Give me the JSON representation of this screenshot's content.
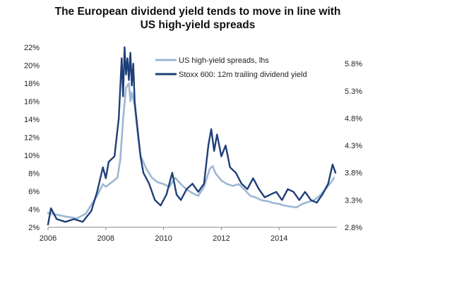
{
  "chart_data": {
    "type": "line",
    "title_line1": "The European dividend yield tends to move in line with",
    "title_line2": "US high-yield spreads",
    "x_ticks": [
      "2006",
      "2008",
      "2010",
      "2012",
      "2014"
    ],
    "x_tick_values": [
      2006,
      2008,
      2010,
      2012,
      2014
    ],
    "xlim": [
      2006,
      2016.0
    ],
    "y_left_ticks": [
      "2%",
      "4%",
      "6%",
      "8%",
      "10%",
      "12%",
      "14%",
      "16%",
      "18%",
      "20%",
      "22%"
    ],
    "y_left_values": [
      2,
      4,
      6,
      8,
      10,
      12,
      14,
      16,
      18,
      20,
      22
    ],
    "ylim_left": [
      2,
      22
    ],
    "y_right_ticks": [
      "2.8%",
      "3.3%",
      "3.8%",
      "4.3%",
      "4.8%",
      "5.3%",
      "5.8%"
    ],
    "y_right_values": [
      2.8,
      3.3,
      3.8,
      4.3,
      4.8,
      5.3,
      5.8
    ],
    "ylim_right": [
      2.8,
      6.1
    ],
    "legend_position": "top-right",
    "series": [
      {
        "name": "US high-yield spreads, lhs",
        "axis": "left",
        "color": "#9bb7d4",
        "x": [
          2006.0,
          2006.3,
          2006.6,
          2007.0,
          2007.3,
          2007.5,
          2007.7,
          2007.9,
          2008.0,
          2008.2,
          2008.4,
          2008.5,
          2008.6,
          2008.7,
          2008.8,
          2008.85,
          2008.9,
          2009.0,
          2009.1,
          2009.2,
          2009.4,
          2009.6,
          2009.8,
          2010.0,
          2010.2,
          2010.4,
          2010.6,
          2010.8,
          2011.0,
          2011.2,
          2011.4,
          2011.6,
          2011.7,
          2011.8,
          2012.0,
          2012.2,
          2012.4,
          2012.6,
          2012.8,
          2013.0,
          2013.2,
          2013.4,
          2013.6,
          2013.8,
          2014.0,
          2014.2,
          2014.4,
          2014.6,
          2014.8,
          2015.0,
          2015.2,
          2015.4,
          2015.6,
          2015.8,
          2015.9
        ],
        "values": [
          3.6,
          3.4,
          3.2,
          3.0,
          3.5,
          4.5,
          5.5,
          6.8,
          6.5,
          7.0,
          7.5,
          9.5,
          14.0,
          17.5,
          18.0,
          16.0,
          17.0,
          15.5,
          12.5,
          10.0,
          8.5,
          7.5,
          7.0,
          6.8,
          6.5,
          7.5,
          6.8,
          6.2,
          5.8,
          5.5,
          6.5,
          8.5,
          8.8,
          8.0,
          7.2,
          6.8,
          6.6,
          6.8,
          6.2,
          5.5,
          5.3,
          5.0,
          4.9,
          4.7,
          4.6,
          4.4,
          4.3,
          4.2,
          4.6,
          4.8,
          5.0,
          5.5,
          6.2,
          7.0,
          7.5
        ]
      },
      {
        "name": "Stoxx 600: 12m trailing dividend yield",
        "axis": "right",
        "color": "#1e3f78",
        "x": [
          2006.0,
          2006.1,
          2006.3,
          2006.6,
          2006.9,
          2007.2,
          2007.5,
          2007.7,
          2007.9,
          2008.0,
          2008.1,
          2008.3,
          2008.45,
          2008.55,
          2008.6,
          2008.65,
          2008.7,
          2008.75,
          2008.8,
          2008.85,
          2008.9,
          2008.95,
          2009.0,
          2009.1,
          2009.2,
          2009.3,
          2009.5,
          2009.7,
          2009.9,
          2010.1,
          2010.3,
          2010.45,
          2010.6,
          2010.8,
          2011.0,
          2011.2,
          2011.4,
          2011.55,
          2011.65,
          2011.75,
          2011.85,
          2012.0,
          2012.15,
          2012.3,
          2012.5,
          2012.7,
          2012.9,
          2013.1,
          2013.3,
          2013.5,
          2013.7,
          2013.9,
          2014.1,
          2014.3,
          2014.5,
          2014.7,
          2014.9,
          2015.1,
          2015.3,
          2015.5,
          2015.7,
          2015.85,
          2015.95
        ],
        "values": [
          2.85,
          3.15,
          2.95,
          2.9,
          2.95,
          2.9,
          3.1,
          3.45,
          3.9,
          3.7,
          4.0,
          4.1,
          4.8,
          5.9,
          5.2,
          6.1,
          5.6,
          5.9,
          5.5,
          6.0,
          5.4,
          5.8,
          5.1,
          4.6,
          4.1,
          3.8,
          3.6,
          3.3,
          3.2,
          3.4,
          3.8,
          3.4,
          3.3,
          3.5,
          3.6,
          3.45,
          3.6,
          4.3,
          4.6,
          4.2,
          4.5,
          4.1,
          4.3,
          3.9,
          3.8,
          3.6,
          3.5,
          3.7,
          3.5,
          3.35,
          3.4,
          3.45,
          3.3,
          3.5,
          3.45,
          3.3,
          3.45,
          3.3,
          3.25,
          3.4,
          3.6,
          3.95,
          3.8
        ]
      }
    ]
  }
}
